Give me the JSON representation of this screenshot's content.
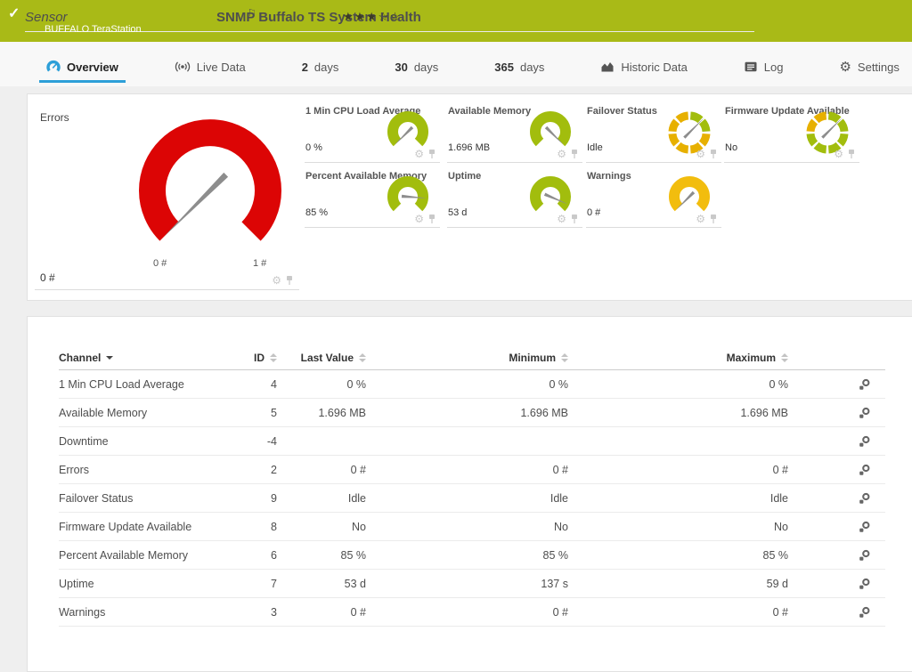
{
  "icons": {
    "check": "✓",
    "flag": "⚐",
    "star_filled": "★",
    "star_empty": "☆",
    "gear": "⚙"
  },
  "header": {
    "sensor_label": "Sensor",
    "title": "SNMP Buffalo TS System Health",
    "subtitle": "BUFFALO TeraStation",
    "rating": 3,
    "rating_max": 5,
    "bg_color": "#a9ba17"
  },
  "tabs": {
    "items": [
      {
        "label": "Overview",
        "icon": "overview-icon",
        "active": true
      },
      {
        "label": "Live Data",
        "icon": "live-data-icon"
      },
      {
        "num": "2",
        "label": "days"
      },
      {
        "num": "30",
        "label": "days"
      },
      {
        "num": "365",
        "label": "days"
      },
      {
        "label": "Historic Data",
        "icon": "historic-data-icon"
      },
      {
        "label": "Log",
        "icon": "log-icon"
      },
      {
        "label": "Settings",
        "icon": "settings-icon"
      }
    ]
  },
  "gauges": {
    "main": {
      "title": "Errors",
      "value": "0 #",
      "scale_min_label": "0 #",
      "scale_max_label": "1 #",
      "color": "#dc0505",
      "needle": 0
    },
    "small": [
      {
        "title": "1 Min CPU Load Average",
        "value": "0 %",
        "type": "arc",
        "color": "#a2bd0d",
        "needle": 0
      },
      {
        "title": "Available Memory",
        "value": "1.696 MB",
        "type": "arc",
        "color": "#a2bd0d",
        "needle": 1
      },
      {
        "title": "Failover Status",
        "value": "Idle",
        "type": "ring",
        "needle_deg": -45,
        "segments": [
          "#a2bd0d",
          "#a2bd0d",
          "#e7b000",
          "#e7b000",
          "#e7b000",
          "#e7b000",
          "#e7b000",
          "#e7b000"
        ]
      },
      {
        "title": "Firmware Update Available",
        "value": "No",
        "type": "ring",
        "needle_deg": -45,
        "segments": [
          "#a2bd0d",
          "#a2bd0d",
          "#a2bd0d",
          "#a2bd0d",
          "#a2bd0d",
          "#a2bd0d",
          "#e7b000",
          "#e7b000"
        ]
      },
      {
        "title": "Percent Available Memory",
        "value": "85 %",
        "type": "arc",
        "color": "#a2bd0d",
        "needle": 0.85
      },
      {
        "title": "Uptime",
        "value": "53 d",
        "type": "arc",
        "color": "#a2bd0d",
        "needle": 0.92
      },
      {
        "title": "Warnings",
        "value": "0 #",
        "type": "arc",
        "color": "#f2bd0e",
        "needle": 0
      }
    ]
  },
  "table": {
    "columns": [
      {
        "key": "channel",
        "label": "Channel",
        "align": "left",
        "sorted": true
      },
      {
        "key": "id",
        "label": "ID",
        "align": "right"
      },
      {
        "key": "last",
        "label": "Last Value",
        "align": "right"
      },
      {
        "key": "min",
        "label": "Minimum",
        "align": "right"
      },
      {
        "key": "max",
        "label": "Maximum",
        "align": "right"
      }
    ],
    "rows": [
      {
        "channel": "1 Min CPU Load Average",
        "id": "4",
        "last": "0 %",
        "min": "0 %",
        "max": "0 %"
      },
      {
        "channel": "Available Memory",
        "id": "5",
        "last": "1.696 MB",
        "min": "1.696 MB",
        "max": "1.696 MB"
      },
      {
        "channel": "Downtime",
        "id": "-4",
        "last": "",
        "min": "",
        "max": ""
      },
      {
        "channel": "Errors",
        "id": "2",
        "last": "0 #",
        "min": "0 #",
        "max": "0 #"
      },
      {
        "channel": "Failover Status",
        "id": "9",
        "last": "Idle",
        "min": "Idle",
        "max": "Idle"
      },
      {
        "channel": "Firmware Update Available",
        "id": "8",
        "last": "No",
        "min": "No",
        "max": "No"
      },
      {
        "channel": "Percent Available Memory",
        "id": "6",
        "last": "85 %",
        "min": "85 %",
        "max": "85 %"
      },
      {
        "channel": "Uptime",
        "id": "7",
        "last": "53 d",
        "min": "137 s",
        "max": "59 d"
      },
      {
        "channel": "Warnings",
        "id": "3",
        "last": "0 #",
        "min": "0 #",
        "max": "0 #"
      }
    ]
  }
}
